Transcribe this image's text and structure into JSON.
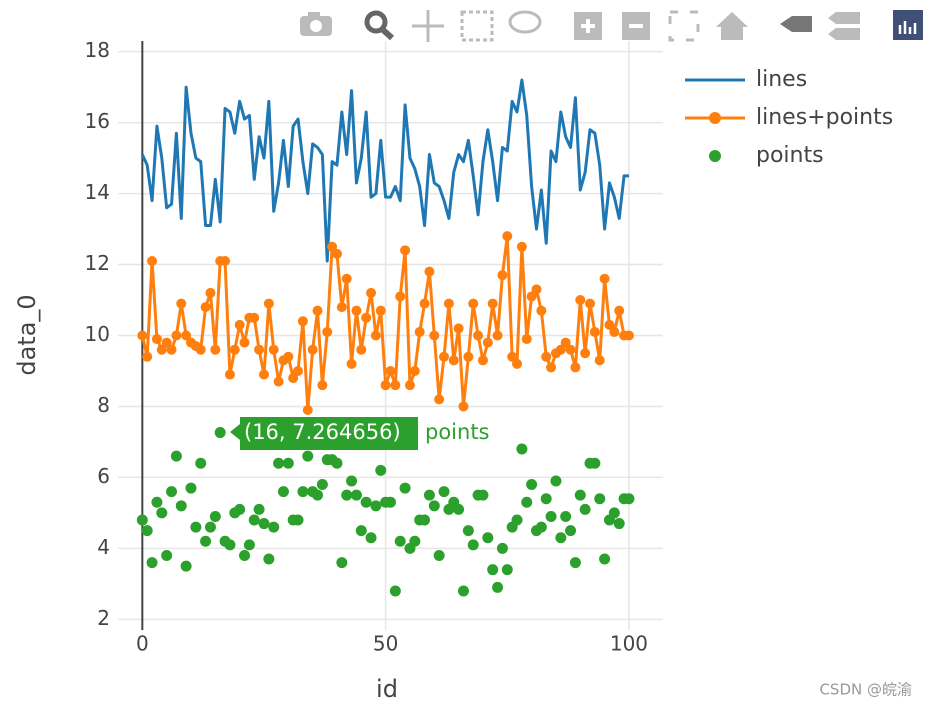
{
  "chart_data": {
    "type": "scatter",
    "x_label": "id",
    "y_label": "data_0",
    "x": [
      0,
      1,
      2,
      3,
      4,
      5,
      6,
      7,
      8,
      9,
      10,
      11,
      12,
      13,
      14,
      15,
      16,
      17,
      18,
      19,
      20,
      21,
      22,
      23,
      24,
      25,
      26,
      27,
      28,
      29,
      30,
      31,
      32,
      33,
      34,
      35,
      36,
      37,
      38,
      39,
      40,
      41,
      42,
      43,
      44,
      45,
      46,
      47,
      48,
      49,
      50,
      51,
      52,
      53,
      54,
      55,
      56,
      57,
      58,
      59,
      60,
      61,
      62,
      63,
      64,
      65,
      66,
      67,
      68,
      69,
      70,
      71,
      72,
      73,
      74,
      75,
      76,
      77,
      78,
      79,
      80,
      81,
      82,
      83,
      84,
      85,
      86,
      87,
      88,
      89,
      90,
      91,
      92,
      93,
      94,
      95,
      96,
      97,
      98,
      99,
      100
    ],
    "series": [
      {
        "name": "lines",
        "mode": "lines",
        "color": "#1f77b4",
        "values": [
          15.1,
          14.8,
          13.8,
          15.9,
          15.0,
          13.6,
          13.7,
          15.7,
          13.3,
          17.0,
          15.7,
          15.0,
          14.9,
          13.1,
          13.1,
          14.4,
          13.2,
          16.4,
          16.3,
          15.7,
          16.6,
          16.1,
          16.2,
          14.4,
          15.6,
          15.0,
          16.6,
          13.5,
          14.3,
          15.5,
          14.2,
          15.9,
          16.1,
          14.9,
          14.0,
          15.4,
          15.3,
          15.1,
          12.1,
          14.9,
          14.8,
          16.3,
          15.1,
          16.9,
          14.3,
          15.0,
          16.3,
          13.9,
          14.0,
          15.5,
          13.9,
          13.9,
          14.2,
          13.8,
          16.5,
          15.0,
          14.7,
          14.2,
          13.1,
          15.1,
          14.3,
          14.2,
          13.8,
          13.3,
          14.6,
          15.1,
          14.9,
          15.5,
          14.5,
          13.4,
          14.9,
          15.8,
          14.9,
          13.8,
          15.3,
          15.2,
          16.6,
          16.3,
          17.2,
          16.2,
          14.2,
          13.0,
          14.1,
          12.6,
          15.2,
          14.9,
          16.3,
          15.6,
          15.3,
          16.7,
          14.1,
          14.6,
          15.8,
          15.7,
          14.8,
          13.0,
          14.3,
          13.9,
          13.3,
          14.5,
          14.5
        ]
      },
      {
        "name": "lines+points",
        "mode": "lines+markers",
        "color": "#ff7f0e",
        "values": [
          10.0,
          9.4,
          12.1,
          9.9,
          9.6,
          9.8,
          9.6,
          10.0,
          10.9,
          10.0,
          9.8,
          9.7,
          9.6,
          10.8,
          11.2,
          9.6,
          12.1,
          12.1,
          8.9,
          9.6,
          10.3,
          9.8,
          10.5,
          10.5,
          9.6,
          8.9,
          10.9,
          9.6,
          8.7,
          9.3,
          9.4,
          8.8,
          9.0,
          10.4,
          7.9,
          9.6,
          10.7,
          8.6,
          10.1,
          12.5,
          12.3,
          10.8,
          11.6,
          9.2,
          10.7,
          9.6,
          10.5,
          11.2,
          10.0,
          10.7,
          8.6,
          9.0,
          8.6,
          11.1,
          12.4,
          8.6,
          9.0,
          10.1,
          10.9,
          11.8,
          10.0,
          8.2,
          9.4,
          10.9,
          9.3,
          10.2,
          8.0,
          9.4,
          10.9,
          10.0,
          9.3,
          9.8,
          10.9,
          10.0,
          11.7,
          12.8,
          9.4,
          9.2,
          12.5,
          9.9,
          11.1,
          11.3,
          10.7,
          9.4,
          9.1,
          9.5,
          9.6,
          9.8,
          9.6,
          9.1,
          11.0,
          9.5,
          10.9,
          10.1,
          9.3,
          11.6,
          10.3,
          10.1,
          10.7,
          10.0,
          10.0
        ]
      },
      {
        "name": "points",
        "mode": "markers",
        "color": "#2ca02c",
        "values": [
          4.8,
          4.5,
          3.6,
          5.3,
          5.0,
          3.8,
          5.6,
          6.6,
          5.2,
          3.5,
          5.7,
          4.6,
          6.4,
          4.2,
          4.6,
          4.9,
          7.264656,
          4.2,
          4.1,
          5.0,
          5.1,
          3.8,
          4.1,
          4.8,
          5.1,
          4.7,
          3.7,
          4.6,
          6.4,
          5.6,
          6.4,
          4.8,
          4.8,
          5.6,
          6.6,
          5.6,
          5.5,
          5.8,
          6.5,
          6.5,
          6.4,
          3.6,
          5.5,
          5.9,
          5.5,
          4.5,
          5.3,
          4.3,
          5.2,
          6.2,
          5.3,
          5.3,
          2.8,
          4.2,
          5.7,
          4.0,
          4.2,
          4.8,
          4.8,
          5.5,
          5.2,
          3.8,
          5.6,
          5.1,
          5.3,
          5.1,
          2.8,
          4.5,
          4.1,
          5.5,
          5.5,
          4.3,
          3.4,
          2.9,
          4.0,
          3.4,
          4.6,
          4.8,
          6.8,
          5.3,
          5.8,
          4.5,
          4.6,
          5.4,
          4.9,
          5.9,
          4.3,
          4.9,
          4.5,
          3.6,
          5.5,
          5.1,
          6.4,
          6.4,
          5.4,
          3.7,
          4.8,
          5.0,
          4.7,
          5.4,
          5.4
        ]
      }
    ],
    "xlim": [
      -5,
      107
    ],
    "ylim": [
      1.7,
      18.3
    ],
    "xticks": [
      0,
      50,
      100
    ],
    "yticks": [
      2,
      4,
      6,
      8,
      10,
      12,
      14,
      16,
      18
    ],
    "grid": true,
    "hover_label": "(16, 7.264656)",
    "hover_name": "points",
    "watermark": "CSDN @皖渝"
  }
}
